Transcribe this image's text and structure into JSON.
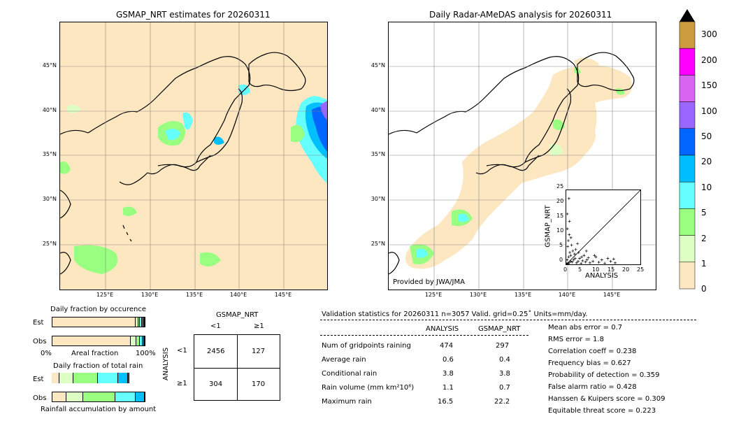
{
  "left_map": {
    "title": "GSMAP_NRT estimates for 20260311",
    "lat_labels": [
      "45°N",
      "40°N",
      "35°N",
      "30°N",
      "25°N"
    ],
    "lon_labels": [
      "125°E",
      "130°E",
      "135°E",
      "140°E",
      "145°E"
    ]
  },
  "right_map": {
    "title": "Daily Radar-AMeDAS analysis for 20260311",
    "lat_labels": [
      "45°N",
      "40°N",
      "35°N",
      "30°N",
      "25°N"
    ],
    "lon_labels": [
      "125°E",
      "130°E",
      "135°E",
      "140°E",
      "145°E"
    ],
    "credit": "Provided by JWA/JMA"
  },
  "colorbar": {
    "labels": [
      "300",
      "200",
      "150",
      "100",
      "50",
      "20",
      "10",
      "5",
      "2",
      "1",
      "0"
    ],
    "colors": [
      "#cc9a3f",
      "#ff00ff",
      "#d966f2",
      "#9966ff",
      "#0066ff",
      "#00bfff",
      "#66ffff",
      "#99ff80",
      "#ddffc4",
      "#fde7c0"
    ]
  },
  "scatter": {
    "xlabel": "ANALYSIS",
    "ylabel": "GSMAP_NRT",
    "ticks": [
      "0",
      "5",
      "10",
      "15",
      "20",
      "25"
    ]
  },
  "fraction_occurrence": {
    "title": "Daily fraction by occurence",
    "rows": [
      "Est",
      "Obs"
    ],
    "axis_left": "0%",
    "axis_mid": "Areal fraction",
    "axis_right": "100%"
  },
  "fraction_total": {
    "title": "Daily fraction of total rain",
    "rows": [
      "Est",
      "Obs"
    ],
    "footer": "Rainfall accumulation by amount"
  },
  "contingency": {
    "title": "GSMAP_NRT",
    "col_labels": [
      "<1",
      "≥1"
    ],
    "row_axis": "ANALYSIS",
    "row_labels": [
      "<1",
      "≥1"
    ],
    "cells": [
      [
        "2456",
        "127"
      ],
      [
        "304",
        "170"
      ]
    ]
  },
  "stats": {
    "header": "Validation statistics for 20260311  n=3057 Valid. grid=0.25˚ Units=mm/day.",
    "col_analysis": "ANALYSIS",
    "col_gsmap": "GSMAP_NRT",
    "rows": [
      {
        "label": "Num of gridpoints raining",
        "analysis": "474",
        "gsmap": "297"
      },
      {
        "label": "Average rain",
        "analysis": "0.6",
        "gsmap": "0.4"
      },
      {
        "label": "Conditional rain",
        "analysis": "3.8",
        "gsmap": "3.8"
      },
      {
        "label": "Rain volume (mm km²10⁶)",
        "analysis": "1.1",
        "gsmap": "0.7"
      },
      {
        "label": "Maximum rain",
        "analysis": "16.5",
        "gsmap": "22.2"
      }
    ],
    "scores": [
      "Mean abs error =    0.7",
      "RMS error =    1.8",
      "Correlation coeff =  0.238",
      "Frequency bias =  0.627",
      "Probability of detection =  0.359",
      "False alarm ratio =  0.428",
      "Hanssen & Kuipers score =  0.309",
      "Equitable threat score =  0.223"
    ]
  },
  "chart_data": [
    {
      "type": "heatmap",
      "title": "GSMAP_NRT estimates for 20260311",
      "lat_range": [
        20,
        50
      ],
      "lon_range": [
        120,
        150
      ]
    },
    {
      "type": "heatmap",
      "title": "Daily Radar-AMeDAS analysis for 20260311",
      "lat_range": [
        20,
        50
      ],
      "lon_range": [
        120,
        150
      ]
    },
    {
      "type": "scatter",
      "xlabel": "ANALYSIS",
      "ylabel": "GSMAP_NRT",
      "xlim": [
        0,
        25
      ],
      "ylim": [
        0,
        25
      ],
      "points": [
        [
          0.5,
          0.3
        ],
        [
          1,
          0.5
        ],
        [
          1.5,
          1
        ],
        [
          2,
          0.8
        ],
        [
          0.3,
          1.5
        ],
        [
          0.8,
          2.5
        ],
        [
          1.2,
          4
        ],
        [
          0.5,
          6
        ],
        [
          0.7,
          8
        ],
        [
          1,
          10
        ],
        [
          0.4,
          12
        ],
        [
          1.5,
          3
        ],
        [
          2.5,
          1.5
        ],
        [
          3,
          2
        ],
        [
          3.5,
          0.5
        ],
        [
          4,
          1
        ],
        [
          4.5,
          2
        ],
        [
          5,
          0.3
        ],
        [
          5.5,
          1.2
        ],
        [
          6,
          3
        ],
        [
          6.5,
          0.8
        ],
        [
          7,
          1.5
        ],
        [
          8,
          0.5
        ],
        [
          9,
          1
        ],
        [
          10,
          2.5
        ],
        [
          11,
          0.7
        ],
        [
          12,
          1.5
        ],
        [
          13,
          0.4
        ],
        [
          14,
          2
        ],
        [
          15,
          1
        ],
        [
          16,
          1.8
        ],
        [
          16.5,
          0.5
        ],
        [
          0.2,
          0.2
        ],
        [
          0.6,
          0.1
        ],
        [
          2.2,
          4.5
        ],
        [
          3.2,
          5
        ],
        [
          1.8,
          6.5
        ],
        [
          2.8,
          3.5
        ],
        [
          4.2,
          4
        ],
        [
          5.2,
          2.5
        ],
        [
          0.9,
          22.2
        ],
        [
          0.4,
          17
        ],
        [
          1.1,
          14.5
        ],
        [
          6.8,
          4.5
        ],
        [
          7.5,
          2.2
        ],
        [
          9.5,
          3
        ],
        [
          3.8,
          7
        ],
        [
          1.6,
          9
        ]
      ]
    },
    {
      "type": "bar",
      "title": "Daily fraction by occurence",
      "series": [
        {
          "name": "Est",
          "values": [
            0.9,
            0.03,
            0.02,
            0.02,
            0.015,
            0.015
          ]
        },
        {
          "name": "Obs",
          "values": [
            0.85,
            0.06,
            0.04,
            0.03,
            0.015,
            0.005
          ]
        }
      ]
    },
    {
      "type": "bar",
      "title": "Daily fraction of total rain",
      "series": [
        {
          "name": "Est",
          "values": [
            0.08,
            0.15,
            0.26,
            0.22,
            0.1,
            0.02
          ]
        },
        {
          "name": "Obs",
          "values": [
            0.15,
            0.18,
            0.35,
            0.22,
            0.1,
            0.0
          ]
        }
      ]
    }
  ]
}
